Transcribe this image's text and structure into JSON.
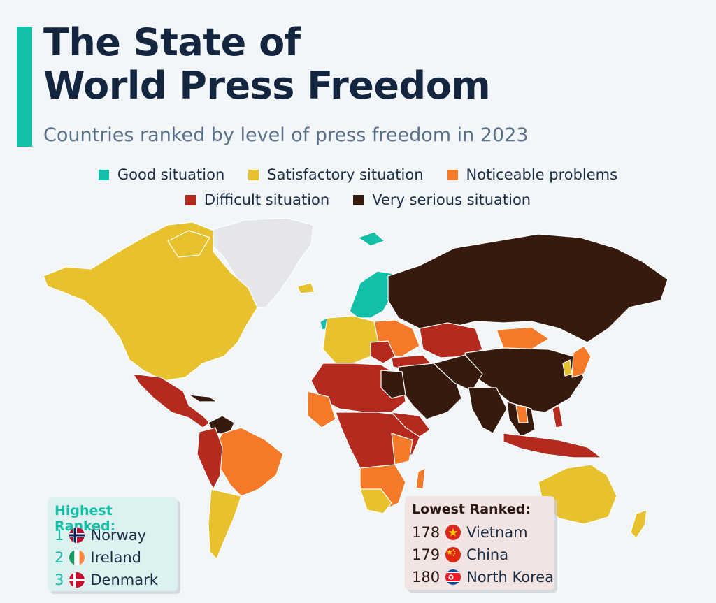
{
  "header": {
    "title_line1": "The State of",
    "title_line2": "World Press Freedom",
    "subtitle": "Countries ranked by level of press freedom in 2023"
  },
  "legend": [
    {
      "label": "Good situation",
      "color": "#14bfa7"
    },
    {
      "label": "Satisfactory situation",
      "color": "#e8c22e"
    },
    {
      "label": "Noticeable problems",
      "color": "#f47a2a"
    },
    {
      "label": "Difficult situation",
      "color": "#b52a1e"
    },
    {
      "label": "Very serious situation",
      "color": "#361a0e"
    }
  ],
  "map_colors": {
    "no_data": "#e4e6e9",
    "border": "#ffffff"
  },
  "highest": {
    "title": "Highest Ranked:",
    "items": [
      {
        "rank": "1",
        "country": "Norway",
        "flag": "norway-flag-icon"
      },
      {
        "rank": "2",
        "country": "Ireland",
        "flag": "ireland-flag-icon"
      },
      {
        "rank": "3",
        "country": "Denmark",
        "flag": "denmark-flag-icon"
      }
    ]
  },
  "lowest": {
    "title": "Lowest Ranked:",
    "items": [
      {
        "rank": "178",
        "country": "Vietnam",
        "flag": "vietnam-flag-icon"
      },
      {
        "rank": "179",
        "country": "China",
        "flag": "china-flag-icon"
      },
      {
        "rank": "180",
        "country": "North Korea",
        "flag": "north-korea-flag-icon"
      }
    ]
  }
}
